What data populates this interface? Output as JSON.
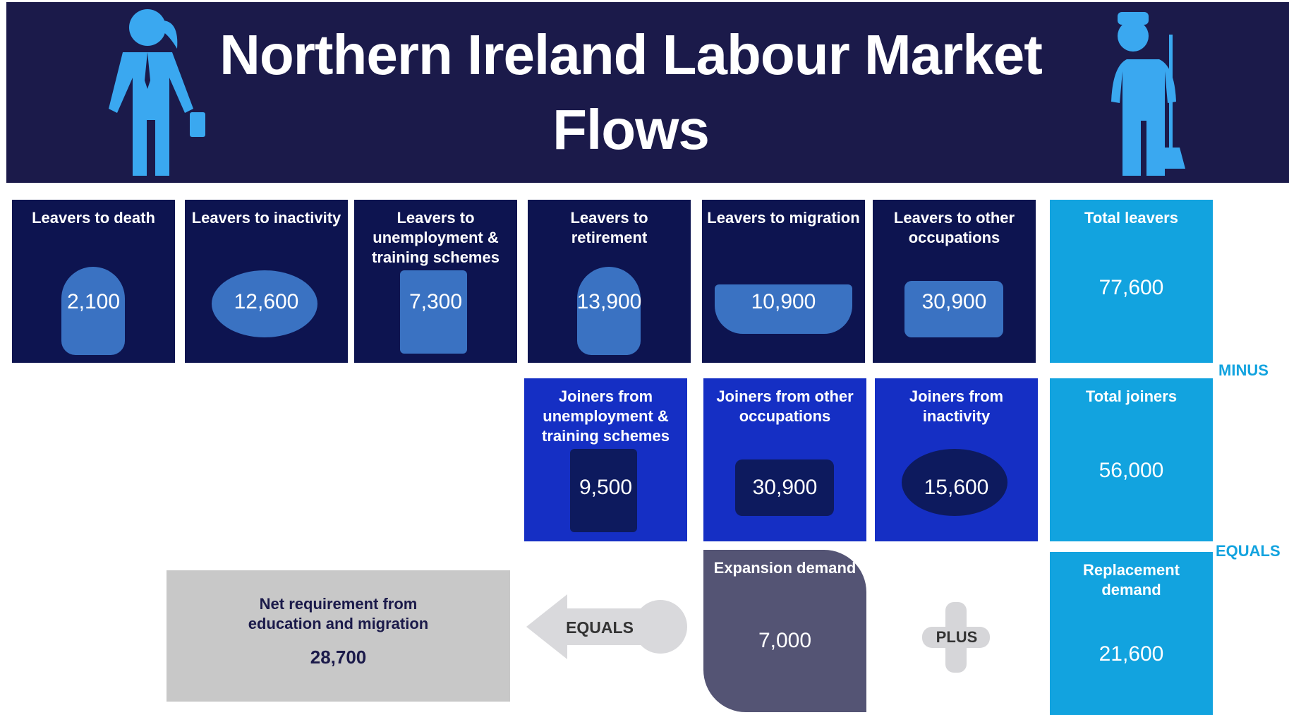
{
  "header": {
    "title": "Northern Ireland Labour Market Flows"
  },
  "leavers": [
    {
      "label": "Leavers to death",
      "value": "2,100"
    },
    {
      "label": "Leavers to inactivity",
      "value": "12,600"
    },
    {
      "label": "Leavers to unemployment & training schemes",
      "value": "7,300"
    },
    {
      "label": "Leavers to retirement",
      "value": "13,900"
    },
    {
      "label": "Leavers to migration",
      "value": "10,900"
    },
    {
      "label": "Leavers to other occupations",
      "value": "30,900"
    }
  ],
  "total_leavers": {
    "label": "Total leavers",
    "value": "77,600"
  },
  "minus": "MINUS",
  "joiners": [
    {
      "label": "Joiners from unemployment & training schemes",
      "value": "9,500"
    },
    {
      "label": "Joiners from other occupations",
      "value": "30,900"
    },
    {
      "label": "Joiners from inactivity",
      "value": "15,600"
    }
  ],
  "total_joiners": {
    "label": "Total joiners",
    "value": "56,000"
  },
  "equals_right": "EQUALS",
  "replacement_demand": {
    "label": "Replacement demand",
    "value": "21,600"
  },
  "plus": "PLUS",
  "expansion_demand": {
    "label": "Expansion demand",
    "value": "7,000"
  },
  "equals_left": "EQUALS",
  "net_requirement": {
    "label": "Net requirement from education and migration",
    "value": "28,700"
  }
}
